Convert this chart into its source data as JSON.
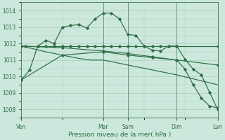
{
  "background_color": "#cce8dc",
  "grid_color": "#aaccbb",
  "line_color": "#2d6e45",
  "xlabel": "Pression niveau de la mer( hPa )",
  "ylim": [
    1007.5,
    1014.5
  ],
  "yticks": [
    1008,
    1009,
    1010,
    1011,
    1012,
    1013,
    1014
  ],
  "day_labels": [
    "Ven",
    "Mar",
    "Sam",
    "Dim",
    "Lun"
  ],
  "day_positions": [
    0,
    10,
    13,
    19,
    24
  ],
  "line1_x": [
    0,
    0.5,
    2,
    3,
    4,
    5,
    6,
    7,
    8,
    9,
    10,
    11,
    12,
    13,
    14,
    15,
    16,
    17,
    18,
    19,
    24
  ],
  "line1_y": [
    1011.85,
    1011.85,
    1011.85,
    1011.85,
    1011.85,
    1011.85,
    1011.85,
    1011.85,
    1011.85,
    1011.85,
    1011.85,
    1011.85,
    1011.85,
    1011.85,
    1011.85,
    1011.85,
    1011.85,
    1011.85,
    1011.85,
    1011.85,
    1011.85
  ],
  "line2_x": [
    0,
    5,
    10,
    13,
    16,
    19,
    24
  ],
  "line2_y": [
    1011.85,
    1011.75,
    1011.55,
    1011.4,
    1011.2,
    1011.0,
    1010.7
  ],
  "line3_x": [
    0,
    3,
    5,
    7,
    8.5,
    10,
    11,
    12,
    13,
    14,
    15,
    16,
    17,
    18,
    19,
    24
  ],
  "line3_y": [
    1011.85,
    1011.5,
    1011.3,
    1011.1,
    1011.0,
    1011.0,
    1010.9,
    1010.8,
    1010.7,
    1010.6,
    1010.5,
    1010.4,
    1010.3,
    1010.2,
    1010.1,
    1009.5
  ],
  "line4_x": [
    0,
    1,
    2,
    3,
    4,
    5,
    6,
    7,
    8,
    9,
    10,
    11,
    12,
    13,
    14,
    15,
    16,
    17,
    18,
    19,
    20,
    21,
    22,
    23,
    24
  ],
  "line4_y": [
    1009.8,
    1010.4,
    1011.85,
    1012.2,
    1012.0,
    1013.0,
    1013.1,
    1013.15,
    1012.95,
    1013.5,
    1013.85,
    1013.85,
    1013.5,
    1012.55,
    1012.5,
    1011.85,
    1011.6,
    1011.55,
    1011.85,
    1011.85,
    1011.05,
    1010.45,
    1010.1,
    1009.05,
    1008.0
  ],
  "line5_x": [
    0,
    5,
    10,
    13,
    16,
    19,
    20,
    21,
    22,
    23,
    24
  ],
  "line5_y": [
    1009.8,
    1011.3,
    1011.5,
    1011.3,
    1011.15,
    1011.0,
    1010.45,
    1009.5,
    1008.7,
    1008.2,
    1008.1
  ]
}
